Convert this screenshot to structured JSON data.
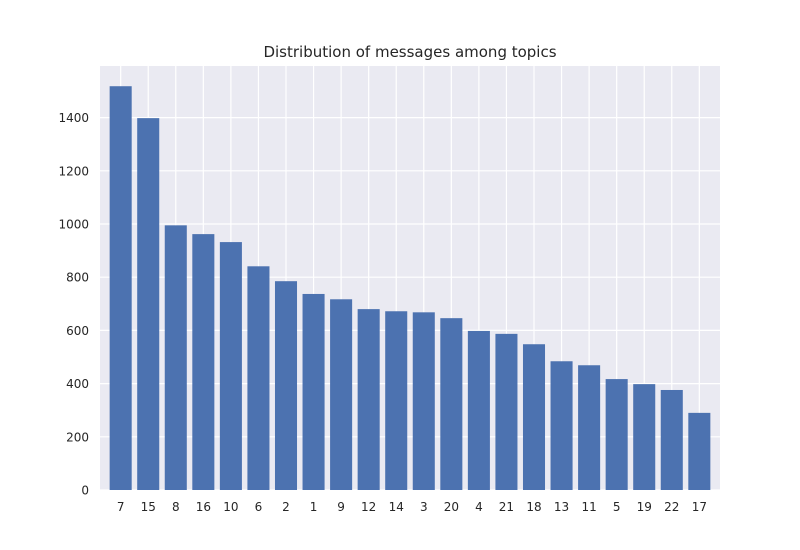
{
  "chart_data": {
    "type": "bar",
    "title": "Distribution of messages among topics",
    "xlabel": "",
    "ylabel": "",
    "categories": [
      "7",
      "15",
      "8",
      "16",
      "10",
      "6",
      "2",
      "1",
      "9",
      "12",
      "14",
      "3",
      "20",
      "4",
      "21",
      "18",
      "13",
      "11",
      "5",
      "19",
      "22",
      "17"
    ],
    "values": [
      1518,
      1398,
      995,
      962,
      932,
      841,
      785,
      737,
      717,
      680,
      672,
      668,
      646,
      598,
      587,
      548,
      484,
      469,
      417,
      398,
      376,
      290
    ],
    "ylim": [
      0,
      1594
    ],
    "yticks": [
      0,
      200,
      400,
      600,
      800,
      1000,
      1200,
      1400
    ],
    "grid": true,
    "legend": "none",
    "colors": {
      "bar": "#4c72b0",
      "plot_background": "#eaeaf2",
      "grid": "#ffffff",
      "text": "#262626"
    }
  }
}
